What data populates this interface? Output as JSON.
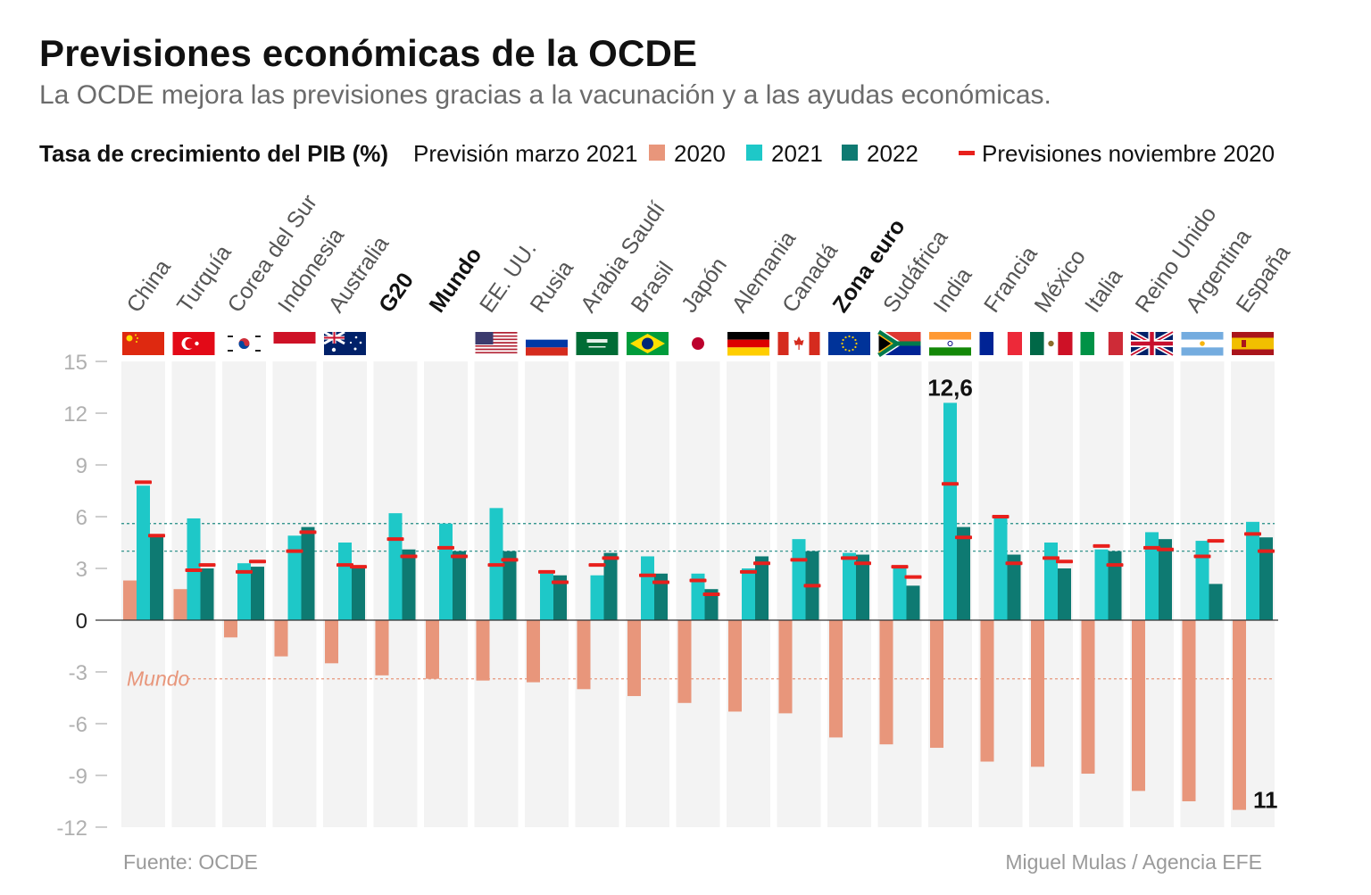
{
  "title": "Previsiones económicas de la OCDE",
  "subtitle": "La OCDE mejora las previsiones gracias a la vacunación y a las ayudas económicas.",
  "legend": {
    "measure": "Tasa de crecimiento del PIB (%)",
    "forecast_label": "Previsión marzo 2021",
    "y2020": "2020",
    "y2021": "2021",
    "y2022": "2022",
    "nov_label": "Previsiones noviembre 2020"
  },
  "source": "Fuente: OCDE",
  "credit": "Miguel Mulas / Agencia EFE",
  "colors": {
    "y2020": "#e8967b",
    "y2021": "#1ec8c8",
    "y2022": "#0e7a72",
    "nov2020": "#e8201c",
    "column_bg": "#f3f3f3",
    "axis_text": "#b0b0b0",
    "mundo_line": "#e8967b",
    "ref_line": "#1e8a82"
  },
  "chart_data": {
    "type": "bar",
    "ylim": [
      -12,
      15
    ],
    "yticks": [
      15,
      12,
      9,
      6,
      3,
      0,
      -3,
      -6,
      -9,
      -12
    ],
    "grid": false,
    "categories": [
      "China",
      "Turquía",
      "Corea del Sur",
      "Indonesia",
      "Australia",
      "G20",
      "Mundo",
      "EE. UU.",
      "Rusia",
      "Arabia Saudí",
      "Brasil",
      "Japón",
      "Alemania",
      "Canadá",
      "Zona euro",
      "Sudáfrica",
      "India",
      "Francia",
      "México",
      "Italia",
      "Reino Unido",
      "Argentina",
      "España"
    ],
    "bold_categories": [
      "G20",
      "Mundo",
      "Zona euro"
    ],
    "flags": [
      "china-flag",
      "turkey-flag",
      "south-korea-flag",
      "indonesia-flag",
      "australia-flag",
      "",
      "",
      "usa-flag",
      "russia-flag",
      "saudi-arabia-flag",
      "brazil-flag",
      "japan-flag",
      "germany-flag",
      "canada-flag",
      "eu-flag",
      "south-africa-flag",
      "india-flag",
      "france-flag",
      "mexico-flag",
      "italy-flag",
      "uk-flag",
      "argentina-flag",
      "spain-flag"
    ],
    "series": [
      {
        "name": "2020",
        "values": [
          2.3,
          1.8,
          -1.0,
          -2.1,
          -2.5,
          -3.2,
          -3.4,
          -3.5,
          -3.6,
          -4.0,
          -4.4,
          -4.8,
          -5.3,
          -5.4,
          -6.8,
          -7.2,
          -7.4,
          -8.2,
          -8.5,
          -8.9,
          -9.9,
          -10.5,
          -11.0
        ]
      },
      {
        "name": "2021",
        "values": [
          7.8,
          5.9,
          3.3,
          4.9,
          4.5,
          6.2,
          5.6,
          6.5,
          2.7,
          2.6,
          3.7,
          2.7,
          3.0,
          4.7,
          3.9,
          3.0,
          12.6,
          5.9,
          4.5,
          4.1,
          5.1,
          4.6,
          5.7
        ]
      },
      {
        "name": "2022",
        "values": [
          4.9,
          3.0,
          3.1,
          5.4,
          3.1,
          4.1,
          4.0,
          4.0,
          2.6,
          3.9,
          2.7,
          1.8,
          3.7,
          4.0,
          3.8,
          2.0,
          5.4,
          3.8,
          3.0,
          4.0,
          4.7,
          2.1,
          4.8
        ]
      }
    ],
    "nov2020_2021": [
      8.0,
      2.9,
      2.8,
      4.0,
      3.2,
      4.7,
      4.2,
      3.2,
      2.8,
      3.2,
      2.6,
      2.3,
      2.8,
      3.5,
      3.6,
      3.1,
      7.9,
      6.0,
      3.6,
      4.3,
      4.2,
      3.7,
      5.0
    ],
    "nov2020_2022": [
      4.9,
      3.2,
      3.4,
      5.1,
      3.1,
      3.7,
      3.7,
      3.5,
      2.2,
      3.6,
      2.2,
      1.5,
      3.3,
      2.0,
      3.3,
      2.5,
      4.8,
      3.3,
      3.4,
      3.2,
      4.1,
      4.6,
      4.0
    ],
    "reference_lines": {
      "mundo_2020": -3.4,
      "mundo_2021": 5.6,
      "mundo_2022": 4.0
    },
    "mundo_line_label": "Mundo",
    "annotations": [
      {
        "category": "India",
        "series": "2021",
        "text": "12,6"
      },
      {
        "category": "España",
        "series": "2020",
        "text": "11"
      }
    ]
  }
}
